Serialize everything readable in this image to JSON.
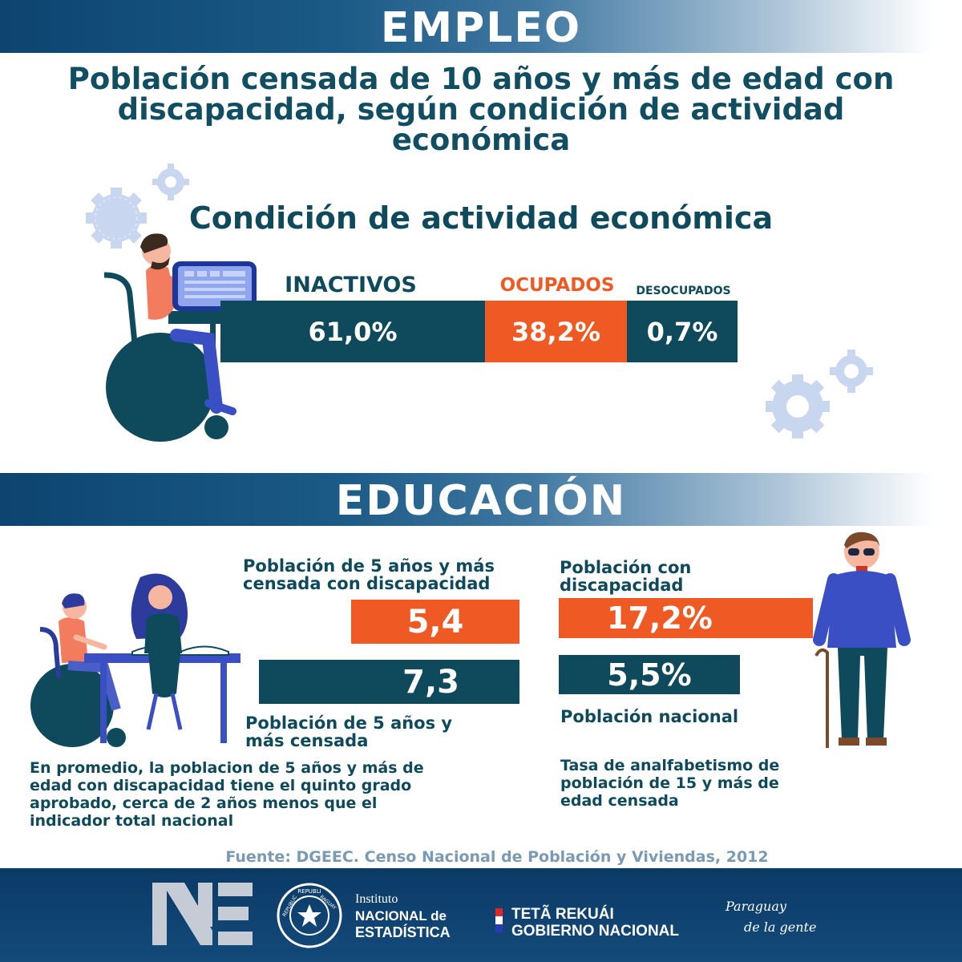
{
  "banners": {
    "empleo": "EMPLEO",
    "educacion": "EDUCACIÓN"
  },
  "main_title": "Población censada de 10 años y más de edad con discapacidad, según condición de actividad económica",
  "employment": {
    "section_title": "Condición de actividad económica",
    "segments": [
      {
        "label": "INACTIVOS",
        "value_text": "61,0%",
        "color": "#0e4a5c"
      },
      {
        "label": "OCUPADOS",
        "value_text": "38,2%",
        "color": "#ef5a24"
      },
      {
        "label": "DESOCUPADOS",
        "value_text": "0,7%",
        "color": "#0e4a5c"
      }
    ]
  },
  "education": {
    "years_disability_label": "Población de 5 años y más censada con discapacidad",
    "years_disability_value": "5,4",
    "years_total_value": "7,3",
    "years_total_label": "Población de 5 años y más censada",
    "years_note": "En promedio, la poblacion de 5 años y más de edad con discapacidad tiene el quinto grado aprobado, cerca de 2 años menos que el indicador total nacional",
    "illit_disability_label": "Población con discapacidad",
    "illit_disability_value": "17,2%",
    "illit_national_value": "5,5%",
    "illit_national_label": "Población nacional",
    "illit_note": "Tasa de analfabetismo de población de 15 y más de edad censada"
  },
  "chart_data": [
    {
      "type": "bar",
      "title": "Condición de actividad económica",
      "categories": [
        "INACTIVOS",
        "OCUPADOS",
        "DESOCUPADOS"
      ],
      "values": [
        61.0,
        38.2,
        0.7
      ],
      "unit": "%",
      "stacked": true
    },
    {
      "type": "bar",
      "categories": [
        "Población de 5 años y más censada con discapacidad",
        "Población de 5 años y más censada"
      ],
      "values": [
        5.4,
        7.3
      ]
    },
    {
      "type": "bar",
      "categories": [
        "Población con discapacidad",
        "Población nacional"
      ],
      "values": [
        17.2,
        5.5
      ],
      "unit": "%"
    }
  ],
  "colors": {
    "teal": "#0e4a5c",
    "orange": "#ef5a24",
    "navy": "#0d4470"
  },
  "source": "Fuente: DGEEC. Censo Nacional de Población y Viviendas, 2012",
  "footer": {
    "institute_line1": "Instituto",
    "institute_line2": "NACIONAL de",
    "institute_line3": "ESTADÍSTICA",
    "seal_top": "REPUBLI",
    "seal_right": "RAGUAY",
    "seal_left": "REPUBLIC",
    "gov_line1": "TETÃ REKUÁI",
    "gov_line2": "GOBIERNO NACIONAL",
    "slogan_line1": "Paraguay",
    "slogan_line2": "de la gente"
  }
}
